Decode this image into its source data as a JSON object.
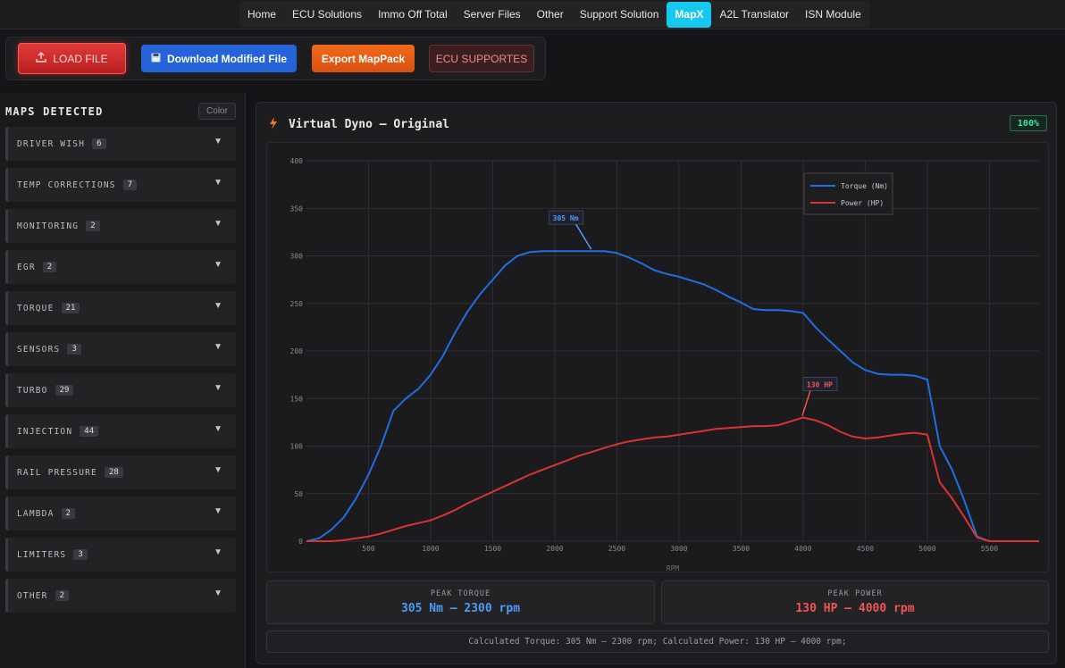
{
  "nav": {
    "items": [
      "Home",
      "ECU Solutions",
      "Immo Off Total",
      "Server Files",
      "Other",
      "Support Solution",
      "MapX",
      "A2L Translator",
      "ISN Module"
    ],
    "active": "MapX"
  },
  "toolbar": {
    "load_label": "LOAD FILE",
    "download_label": "Download Modified File",
    "export_label": "Export MapPack",
    "ecu_label": "ECU SUPPORTES"
  },
  "sidebar": {
    "title": "MAPS DETECTED",
    "color_label": "Color",
    "items": [
      {
        "label": "DRIVER WISH",
        "count": "6"
      },
      {
        "label": "TEMP CORRECTIONS",
        "count": "7"
      },
      {
        "label": "MONITORING",
        "count": "2"
      },
      {
        "label": "EGR",
        "count": "2"
      },
      {
        "label": "TORQUE",
        "count": "21"
      },
      {
        "label": "SENSORS",
        "count": "3"
      },
      {
        "label": "TURBO",
        "count": "29"
      },
      {
        "label": "INJECTION",
        "count": "44"
      },
      {
        "label": "RAIL PRESSURE",
        "count": "28"
      },
      {
        "label": "LAMBDA",
        "count": "2"
      },
      {
        "label": "LIMITERS",
        "count": "3"
      },
      {
        "label": "OTHER",
        "count": "2"
      }
    ]
  },
  "panel": {
    "title": "Virtual Dyno — Original",
    "badge": "100%",
    "peak_torque_label": "PEAK TORQUE",
    "peak_torque_value": "305 Nm — 2300 rpm",
    "peak_power_label": "PEAK POWER",
    "peak_power_value": "130 HP — 4000 rpm",
    "summary": "Calculated Torque: 305 Nm — 2300 rpm; Calculated Power: 130 HP — 4000 rpm;"
  },
  "colors": {
    "torque": "#1f6fe0",
    "power": "#d93434",
    "accent": "#16c8ef",
    "badge": "#3fe6a5"
  },
  "chart_data": {
    "type": "line",
    "xlabel": "RPM",
    "ylabel": "",
    "xlim": [
      0,
      5900
    ],
    "ylim": [
      0,
      400
    ],
    "x_ticks": [
      500,
      1000,
      1500,
      2000,
      2500,
      3000,
      3500,
      4000,
      4500,
      5000,
      5500
    ],
    "y_ticks": [
      0,
      50,
      100,
      150,
      200,
      250,
      300,
      350,
      400
    ],
    "grid": true,
    "legend": "top-right",
    "series": [
      {
        "name": "Torque (Nm)",
        "x": [
          0,
          100,
          200,
          300,
          400,
          500,
          600,
          700,
          800,
          900,
          1000,
          1100,
          1200,
          1300,
          1400,
          1500,
          1600,
          1700,
          1800,
          1900,
          2000,
          2100,
          2200,
          2300,
          2400,
          2500,
          2600,
          2700,
          2800,
          2900,
          3000,
          3100,
          3200,
          3300,
          3400,
          3500,
          3600,
          3700,
          3800,
          3900,
          4000,
          4100,
          4200,
          4300,
          4400,
          4500,
          4600,
          4700,
          4800,
          4900,
          5000,
          5100,
          5200,
          5300,
          5400,
          5500,
          5600,
          5700,
          5800,
          5900
        ],
        "y": [
          0,
          3,
          12,
          25,
          45,
          70,
          100,
          137,
          150,
          160,
          175,
          195,
          220,
          242,
          260,
          275,
          290,
          300,
          304,
          305,
          305,
          305,
          305,
          305,
          305,
          303,
          298,
          292,
          285,
          281,
          278,
          274,
          270,
          264,
          257,
          251,
          244,
          243,
          243,
          242,
          240,
          225,
          212,
          200,
          188,
          180,
          176,
          175,
          175,
          174,
          170,
          100,
          75,
          42,
          5,
          0,
          0,
          0,
          0,
          0
        ]
      },
      {
        "name": "Power (HP)",
        "x": [
          0,
          100,
          200,
          300,
          400,
          500,
          600,
          700,
          800,
          900,
          1000,
          1100,
          1200,
          1300,
          1400,
          1500,
          1600,
          1700,
          1800,
          1900,
          2000,
          2100,
          2200,
          2300,
          2400,
          2500,
          2600,
          2700,
          2800,
          2900,
          3000,
          3100,
          3200,
          3300,
          3400,
          3500,
          3600,
          3700,
          3800,
          3900,
          4000,
          4100,
          4200,
          4300,
          4400,
          4500,
          4600,
          4700,
          4800,
          4900,
          5000,
          5100,
          5200,
          5300,
          5400,
          5500,
          5600,
          5700,
          5800,
          5900
        ],
        "y": [
          0,
          0,
          0,
          1,
          3,
          5,
          8,
          12,
          16,
          19,
          22,
          27,
          33,
          40,
          46,
          52,
          58,
          64,
          70,
          75,
          80,
          85,
          90,
          94,
          98,
          102,
          105,
          107,
          109,
          110,
          112,
          114,
          116,
          118,
          119,
          120,
          121,
          121,
          122,
          126,
          130,
          127,
          122,
          115,
          110,
          108,
          109,
          111,
          113,
          114,
          112,
          62,
          45,
          25,
          4,
          0,
          0,
          0,
          0,
          0
        ]
      }
    ],
    "annotations": [
      {
        "text": "305 Nm",
        "x": 2300,
        "y": 305
      },
      {
        "text": "130 HP",
        "x": 4000,
        "y": 130
      }
    ]
  }
}
